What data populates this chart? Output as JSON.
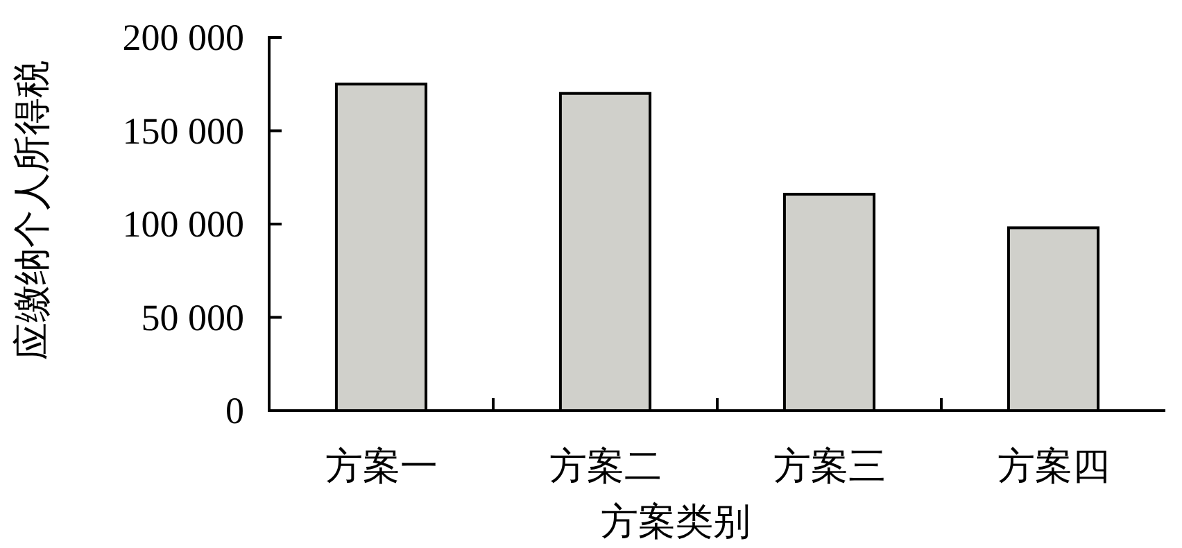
{
  "chart_data": {
    "type": "bar",
    "categories": [
      "方案一",
      "方案二",
      "方案三",
      "方案四"
    ],
    "values": [
      175000,
      170000,
      116000,
      98000
    ],
    "color": "#d0d0cb",
    "xlabel": "方案类别",
    "ylabel": "应缴纳个人所得税",
    "ylim": [
      0,
      200000
    ],
    "yticks": [
      0,
      {
        "value": 50000,
        "label": "50 000"
      },
      {
        "value": 100000,
        "label": "100 000"
      },
      {
        "value": 150000,
        "label": "150 000"
      },
      {
        "value": 200000,
        "label": "200 000"
      }
    ],
    "grid": false
  }
}
